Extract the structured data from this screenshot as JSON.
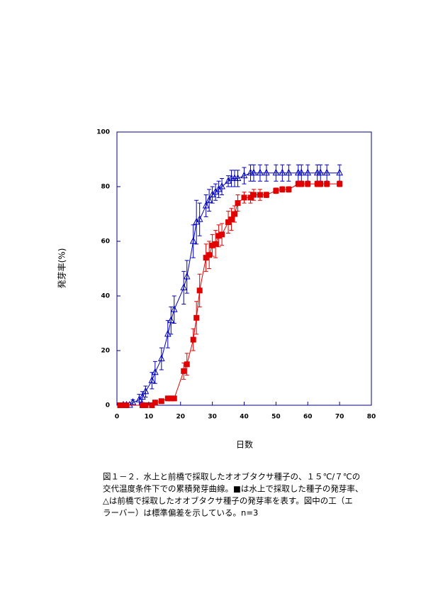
{
  "chart_data": {
    "type": "line",
    "xlabel": "日数",
    "ylabel": "発芽率(%)",
    "xlim": [
      0,
      80
    ],
    "xticks": [
      0,
      10,
      20,
      30,
      40,
      50,
      60,
      70,
      80
    ],
    "ylim": [
      0,
      100
    ],
    "yticks": [
      0,
      20,
      40,
      60,
      80,
      100
    ],
    "grid": false,
    "axis_color": "#000080",
    "series": [
      {
        "color": "#0000c0",
        "marker": "triangle",
        "x": [
          2,
          3,
          4,
          5,
          7,
          8,
          9,
          11,
          12,
          14,
          16,
          17,
          18,
          21,
          22,
          24,
          25,
          26,
          28,
          29,
          30,
          31,
          32,
          33,
          35,
          36,
          37,
          38,
          40,
          42,
          43,
          45,
          47,
          50,
          52,
          54,
          57,
          58,
          60,
          63,
          64,
          66,
          70
        ],
        "values": [
          0,
          0,
          0,
          1,
          2,
          3,
          5,
          9,
          12,
          17,
          26,
          31,
          35,
          43,
          47,
          60,
          67,
          68,
          73,
          75,
          77,
          78,
          79,
          80,
          82,
          83,
          83,
          83,
          84,
          85,
          85,
          85,
          85,
          85,
          85,
          85,
          85,
          85,
          85,
          85,
          85,
          85,
          85
        ],
        "errors": [
          0,
          0,
          0,
          1,
          2,
          2,
          2,
          3,
          4,
          4,
          5,
          5,
          5,
          6,
          6,
          6,
          8,
          6,
          4,
          4,
          3,
          3,
          3,
          3,
          2,
          3,
          3,
          3,
          3,
          3,
          3,
          3,
          3,
          3,
          3,
          3,
          3,
          3,
          3,
          3,
          3,
          3,
          3
        ]
      },
      {
        "color": "#e00000",
        "marker": "square",
        "x": [
          1,
          2,
          3,
          8,
          9,
          11,
          12,
          14,
          16,
          17,
          18,
          21,
          22,
          24,
          25,
          26,
          28,
          29,
          30,
          31,
          32,
          33,
          35,
          36,
          37,
          38,
          40,
          42,
          43,
          45,
          47,
          50,
          52,
          54,
          57,
          58,
          60,
          63,
          64,
          66,
          70
        ],
        "values": [
          0,
          0,
          0,
          0,
          0,
          0,
          1,
          1.5,
          2.5,
          2.5,
          2.5,
          12.5,
          15,
          24,
          32,
          42,
          54,
          55,
          58.5,
          59,
          62,
          62.5,
          67,
          68,
          70,
          74,
          76,
          76,
          77,
          77,
          77,
          78.5,
          79,
          79,
          81,
          81,
          81,
          81,
          81,
          81,
          81
        ],
        "errors": [
          0,
          0,
          0,
          0,
          0,
          0,
          0,
          0,
          0,
          0,
          0,
          3,
          4,
          4,
          6,
          6,
          5,
          5,
          4,
          5,
          4,
          4,
          4,
          4,
          3,
          3,
          2,
          2,
          2,
          2,
          1,
          1,
          1,
          1,
          1,
          1,
          1,
          1,
          1,
          1,
          1
        ]
      }
    ],
    "caption_lines": [
      "図１－２．水上と前橋で採取したオオブタクサ種子の、１５℃/７℃の",
      "交代温度条件下での累積発芽曲線。■は水上で採取した種子の発芽率、",
      "△は前橋で採取したオオブタクサ種子の発芽率を表す。図中の工（エ",
      "ラーバー）は標準偏差を示している。n=3"
    ]
  }
}
